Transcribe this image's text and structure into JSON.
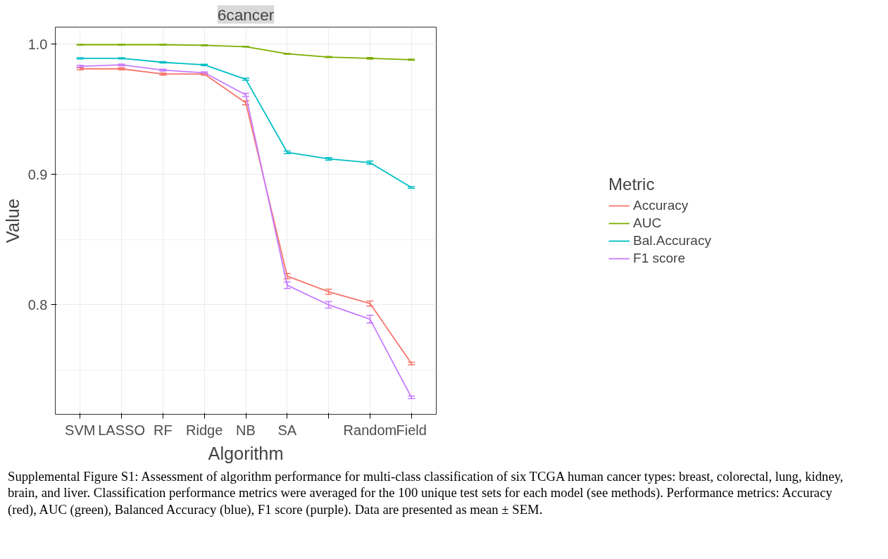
{
  "chart_data": {
    "type": "line",
    "title": "6cancer",
    "xlabel": "Algorithm",
    "ylabel": "Value",
    "legend_title": "Metric",
    "categories": [
      "SVM",
      "LASSO",
      "RF",
      "Ridge",
      "NB",
      "SA",
      null,
      "Random",
      "Field"
    ],
    "ylim": [
      0.716,
      1.013
    ],
    "yticks": [
      {
        "value": 0.8,
        "label": "0.8"
      },
      {
        "value": 0.9,
        "label": "0.9"
      },
      {
        "value": 1.0,
        "label": "1.0"
      }
    ],
    "series": [
      {
        "name": "Accuracy",
        "color": "#f8766d",
        "values": [
          0.981,
          0.981,
          0.977,
          0.977,
          0.955,
          0.822,
          0.81,
          0.801,
          0.755
        ],
        "errors": [
          0.0008,
          0.0008,
          0.0008,
          0.0008,
          0.0015,
          0.002,
          0.002,
          0.002,
          0.001
        ]
      },
      {
        "name": "AUC",
        "color": "#7cae00",
        "values": [
          0.9995,
          0.9995,
          0.9995,
          0.999,
          0.998,
          0.9925,
          0.99,
          0.989,
          0.988
        ],
        "errors": [
          0.0003,
          0.0003,
          0.0003,
          0.0003,
          0.0003,
          0.0003,
          0.0004,
          0.0006,
          0.0004
        ]
      },
      {
        "name": "Bal.Accuracy",
        "color": "#00bfc4",
        "values": [
          0.989,
          0.989,
          0.986,
          0.984,
          0.973,
          0.917,
          0.912,
          0.909,
          0.89
        ],
        "errors": [
          0.0005,
          0.0005,
          0.0005,
          0.0005,
          0.0008,
          0.001,
          0.001,
          0.0012,
          0.0006
        ]
      },
      {
        "name": "F1 score",
        "color": "#c77cff",
        "values": [
          0.983,
          0.984,
          0.98,
          0.978,
          0.961,
          0.815,
          0.8,
          0.789,
          0.729
        ],
        "errors": [
          0.0007,
          0.0007,
          0.0007,
          0.0007,
          0.0012,
          0.0025,
          0.0025,
          0.003,
          0.001
        ]
      }
    ],
    "grid": true,
    "legend": "right",
    "annotations": [
      "Supplemental Figure S1: Assessment of algorithm performance for multi-class classification of six TCGA human cancer types: breast, colorectal, lung, kidney, brain, and liver. Classification performance metrics were averaged for the 100 unique test sets for each model (see methods). Performance metrics: Accuracy (red), AUC (green), Balanced Accuracy (blue), F1 score (purple). Data are presented as mean ± SEM."
    ]
  }
}
